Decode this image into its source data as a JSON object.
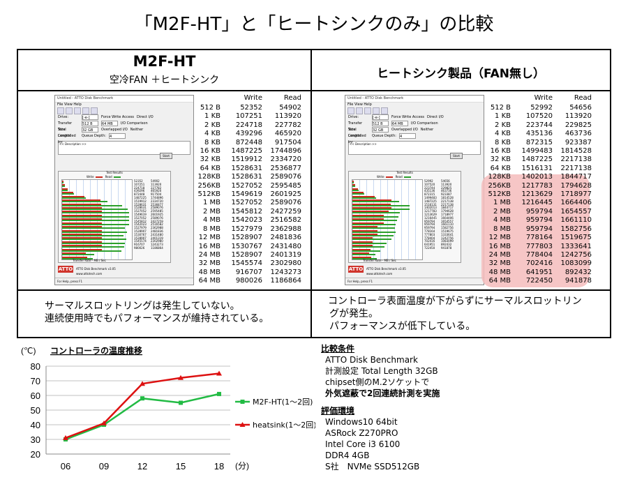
{
  "title": "「M2F-HT」と「ヒートシンクのみ」の比較",
  "left_header": {
    "product": "M2F-HT",
    "sub": "空冷FAN ＋ヒートシンク"
  },
  "right_header": {
    "product": "ヒートシンク製品（FAN無し）"
  },
  "atto_window": {
    "title": "Untitled - ATTO Disk Benchmark",
    "menu": "File   View   Help",
    "drive_label": "Drive:",
    "drive_value": "[-e-]",
    "force_write": "Force Write Access",
    "direct_io": "Direct I/O",
    "transfer_label": "Transfer Size:",
    "transfer_from": "512 B",
    "transfer_to": "64 MB",
    "io_comparison": "I/O Comparison",
    "overlapped": "Overlapped I/O",
    "neither": "Neither",
    "length_label": "Total Length:",
    "length_value": "32 GB",
    "queue_label": "Queue Depth:",
    "queue_value": "4",
    "controlled_by": "Controlled by:",
    "start": "Start",
    "description": "<< Description >>",
    "results_title": "Test Results",
    "legend_write": "Write",
    "legend_read": "Read",
    "x_axis": "Transfer Rate - MB / Sec",
    "logo": "ATTO",
    "version": "ATTO Disk Benchmark v3.05",
    "url": "www.attotech.com",
    "status": "For Help, press F1"
  },
  "table_header": {
    "write": "Write",
    "read": "Read"
  },
  "left_table": [
    {
      "size": "512 B",
      "write": "52352",
      "read": "54902"
    },
    {
      "size": "1 KB",
      "write": "107251",
      "read": "113920"
    },
    {
      "size": "2 KB",
      "write": "224718",
      "read": "227782"
    },
    {
      "size": "4 KB",
      "write": "439296",
      "read": "465920"
    },
    {
      "size": "8 KB",
      "write": "872448",
      "read": "917504"
    },
    {
      "size": "16 KB",
      "write": "1487225",
      "read": "1744896"
    },
    {
      "size": "32 KB",
      "write": "1519912",
      "read": "2334720"
    },
    {
      "size": "64 KB",
      "write": "1528631",
      "read": "2536877"
    },
    {
      "size": "128KB",
      "write": "1528631",
      "read": "2589076"
    },
    {
      "size": "256KB",
      "write": "1527052",
      "read": "2595485"
    },
    {
      "size": "512KB",
      "write": "1549619",
      "read": "2601925"
    },
    {
      "size": "1 MB",
      "write": "1527052",
      "read": "2589076"
    },
    {
      "size": "2 MB",
      "write": "1545812",
      "read": "2427259"
    },
    {
      "size": "4 MB",
      "write": "1542023",
      "read": "2516582"
    },
    {
      "size": "8 MB",
      "write": "1527979",
      "read": "2362988"
    },
    {
      "size": "12 MB",
      "write": "1528907",
      "read": "2481836"
    },
    {
      "size": "16 MB",
      "write": "1530767",
      "read": "2431480"
    },
    {
      "size": "24 MB",
      "write": "1528907",
      "read": "2401319"
    },
    {
      "size": "32 MB",
      "write": "1545574",
      "read": "2302980"
    },
    {
      "size": "48 MB",
      "write": "916707",
      "read": "1243273"
    },
    {
      "size": "64 MB",
      "write": "980026",
      "read": "1186864"
    }
  ],
  "right_table": [
    {
      "size": "512 B",
      "write": "52992",
      "read": "54656"
    },
    {
      "size": "1 KB",
      "write": "107520",
      "read": "113920"
    },
    {
      "size": "2 KB",
      "write": "223744",
      "read": "229825"
    },
    {
      "size": "4 KB",
      "write": "435136",
      "read": "463736"
    },
    {
      "size": "8 KB",
      "write": "872315",
      "read": "923387"
    },
    {
      "size": "16 KB",
      "write": "1499483",
      "read": "1814528"
    },
    {
      "size": "32 KB",
      "write": "1487225",
      "read": "2217138"
    },
    {
      "size": "64 KB",
      "write": "1516131",
      "read": "2217138"
    },
    {
      "size": "128KB",
      "write": "1402013",
      "read": "1844717"
    },
    {
      "size": "256KB",
      "write": "1217783",
      "read": "1794628"
    },
    {
      "size": "512KB",
      "write": "1213629",
      "read": "1718977"
    },
    {
      "size": "1 MB",
      "write": "1216445",
      "read": "1664406"
    },
    {
      "size": "2 MB",
      "write": "959794",
      "read": "1654557"
    },
    {
      "size": "4 MB",
      "write": "959794",
      "read": "1661110"
    },
    {
      "size": "8 MB",
      "write": "959794",
      "read": "1582756"
    },
    {
      "size": "12 MB",
      "write": "778164",
      "read": "1519675"
    },
    {
      "size": "16 MB",
      "write": "777803",
      "read": "1333641"
    },
    {
      "size": "24 MB",
      "write": "778404",
      "read": "1242756"
    },
    {
      "size": "32 MB",
      "write": "702416",
      "read": "1083099"
    },
    {
      "size": "48 MB",
      "write": "641951",
      "read": "892432"
    },
    {
      "size": "64 MB",
      "write": "722450",
      "read": "941878"
    }
  ],
  "left_comment": [
    "サーマルスロットリングは発生していない。",
    "連続使用時でもパフォーマンスが維持されている。"
  ],
  "right_comment": [
    "コントローラ表面温度が下がらずにサーマルスロットリン",
    "グが発生。",
    "パフォーマンスが低下している。"
  ],
  "chart_data": {
    "type": "line",
    "title": "コントローラの温度推移",
    "ylabel": "(℃)",
    "xlabel": "(分)",
    "x": [
      "06",
      "09",
      "12",
      "15",
      "18"
    ],
    "ylim": [
      20,
      80
    ],
    "yticks": [
      20,
      30,
      40,
      50,
      60,
      70,
      80
    ],
    "grid": true,
    "legend_position": "right",
    "series": [
      {
        "name": "M2F-HT(1〜2回)",
        "color": "#22bb44",
        "values": [
          30,
          40,
          58,
          55,
          61
        ]
      },
      {
        "name": "heatsink(1〜2回)",
        "color": "#dd1111",
        "values": [
          31,
          41,
          68,
          72,
          75
        ]
      }
    ]
  },
  "conditions": {
    "heading": "比較条件",
    "lines": [
      "ATTO Disk Benchmark",
      "計測設定 Total Length 32GB",
      "chipset側のM.2ソケットで",
      "外気遮蔽で2回連続計測を実施"
    ]
  },
  "environment": {
    "heading": "評価環境",
    "lines": [
      "Windows10 64bit",
      "ASRock Z270PRO",
      "Intel Core i3 6100",
      "DDR4 4GB",
      "S社　NVMe SSD512GB"
    ]
  },
  "colors": {
    "write": "#cc2a1d",
    "read": "#2ca02c",
    "highlight": "#f5bcbc"
  }
}
